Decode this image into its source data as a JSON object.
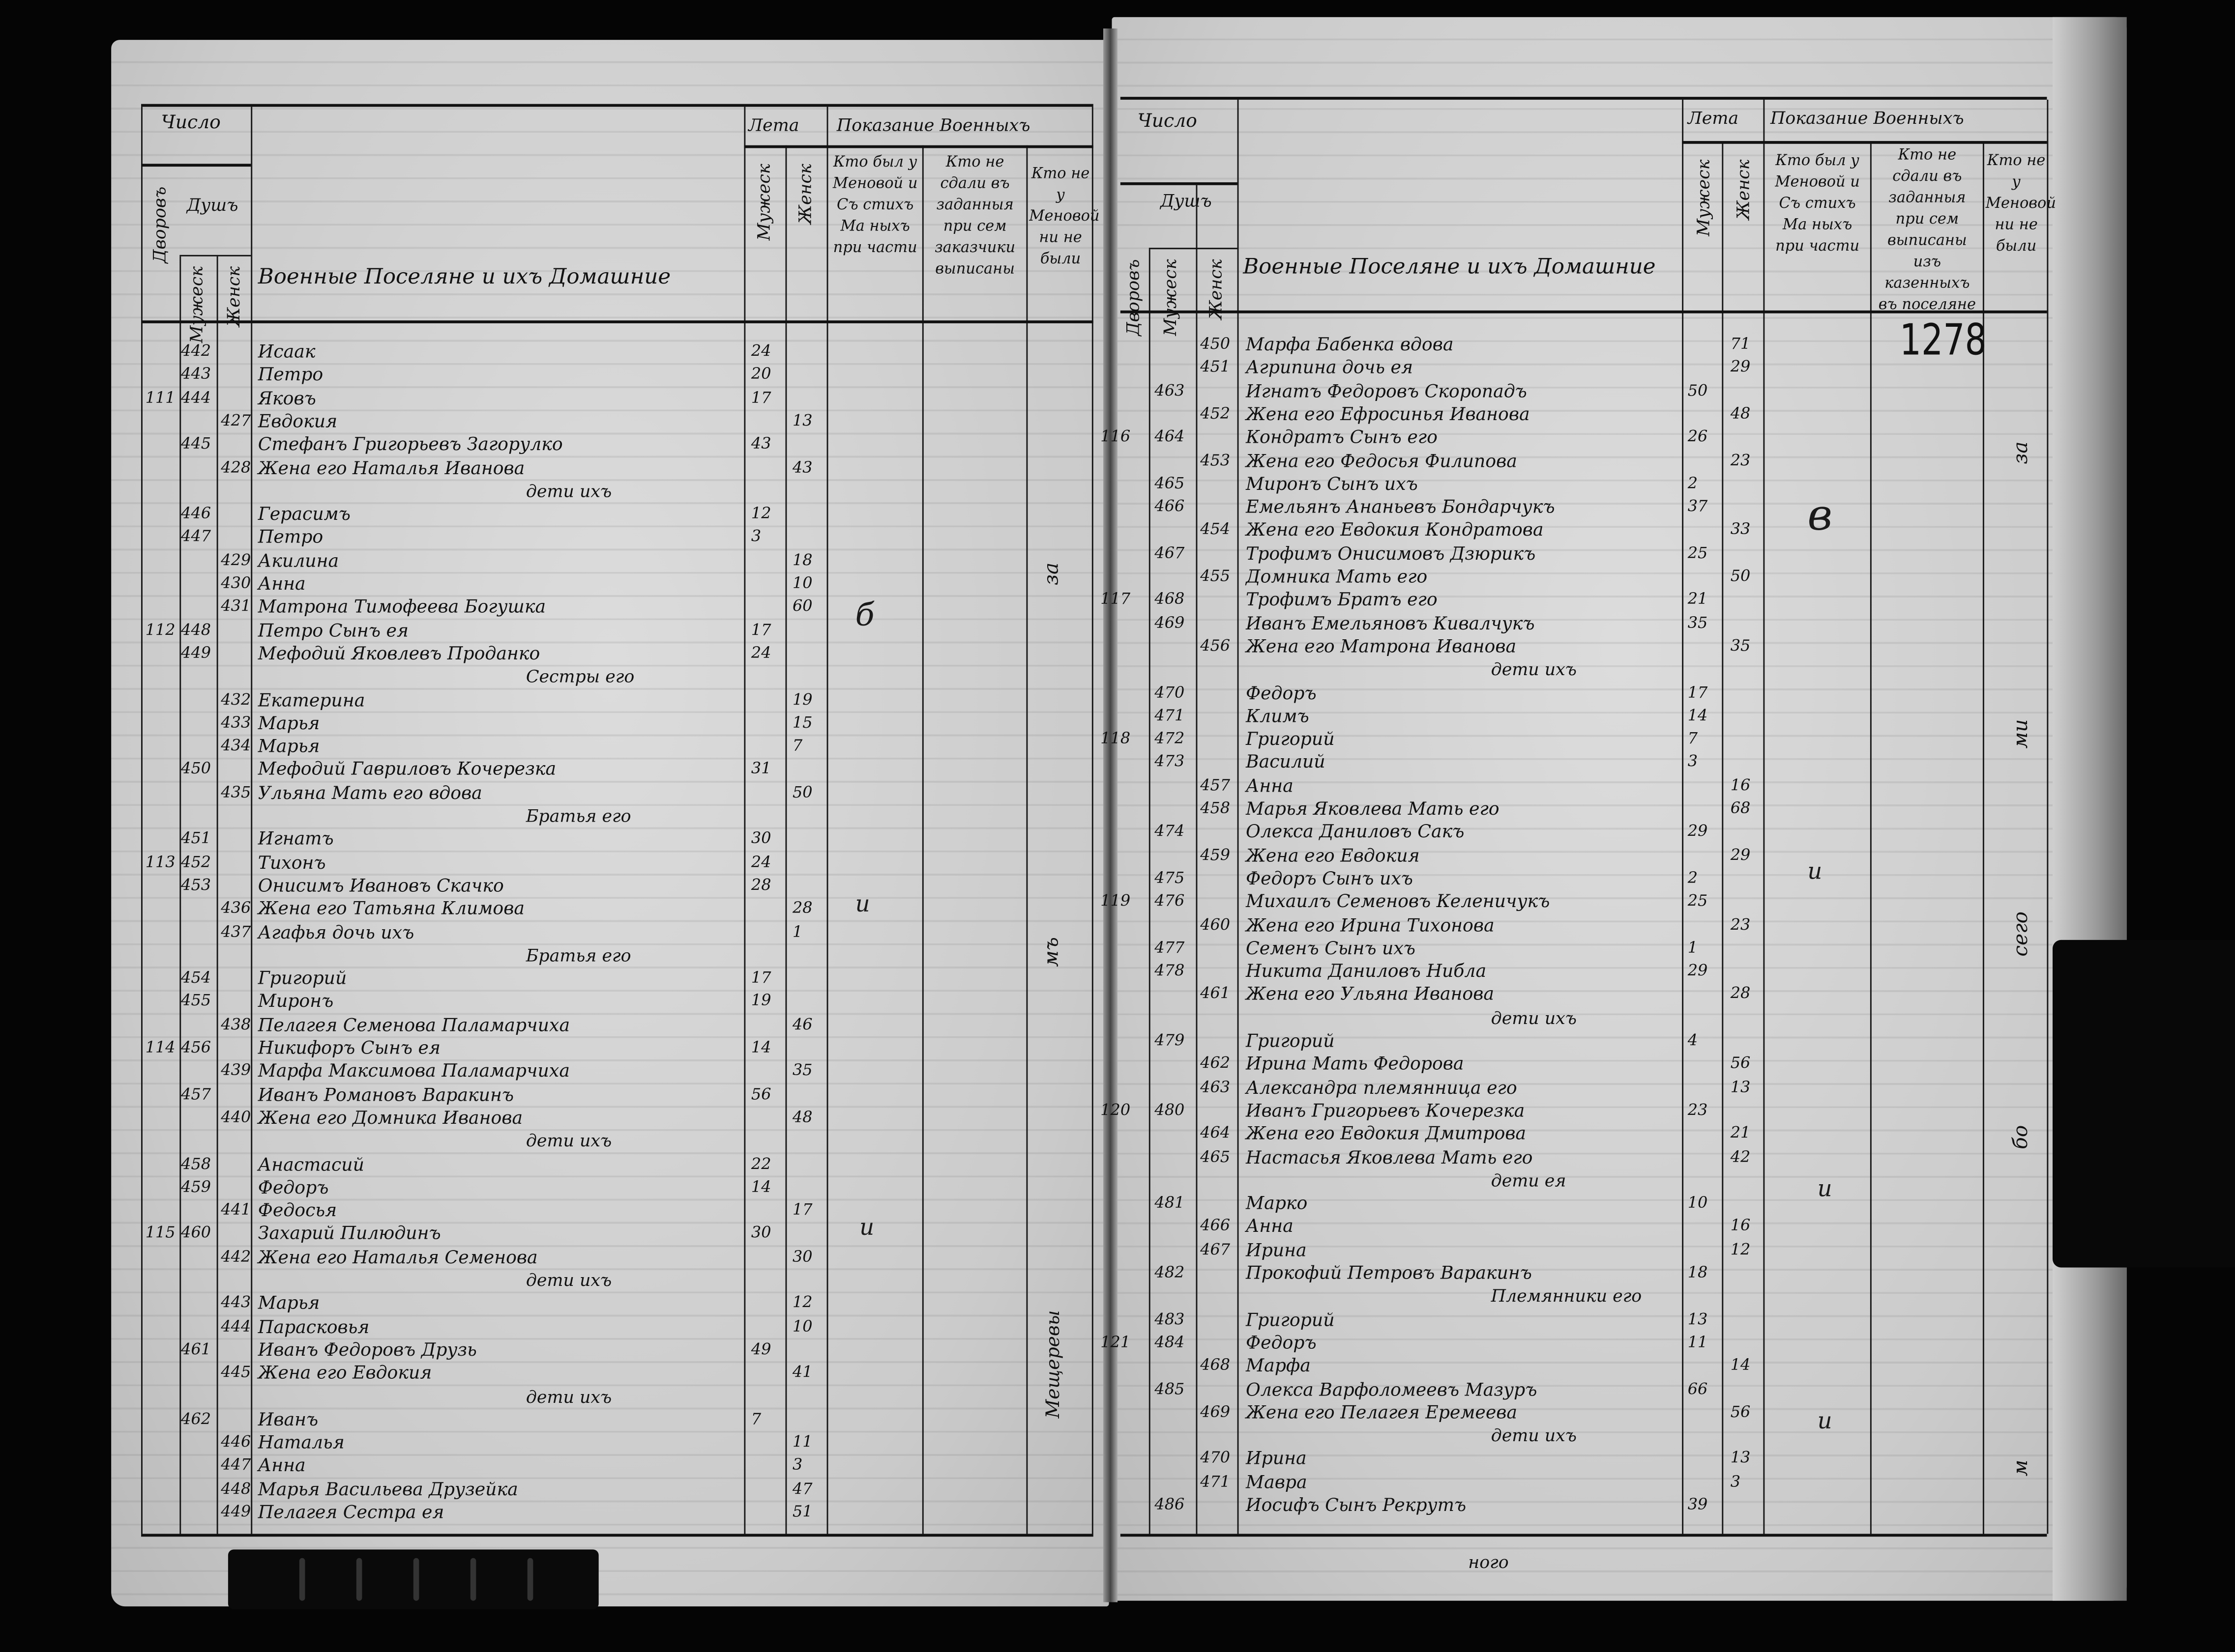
{
  "left_page": {
    "header": {
      "count": "Число",
      "souls": "Душъ",
      "yards": "Дворовъ",
      "male": "Мужеск",
      "female": "Женск",
      "names": "Военные Поселяне и ихъ Домашние",
      "years": "Лета",
      "shown": "Показание Военныхъ",
      "age_male": "Мужеск",
      "age_female": "Женск",
      "col_a": "Кто был у Меновой и Съ стихъ Ма ныхъ при части",
      "col_b": "Кто не сдали въ заданныя при сем заказчики выписаны",
      "col_c": "Кто не у Меновой ни не были"
    },
    "rows": [
      {
        "yard": "",
        "m": "442",
        "f": "",
        "name": "Исаак",
        "am": "24",
        "af": ""
      },
      {
        "yard": "",
        "m": "443",
        "f": "",
        "name": "Петро",
        "am": "20",
        "af": ""
      },
      {
        "yard": "111",
        "m": "444",
        "f": "",
        "name": "Яковъ",
        "am": "17",
        "af": ""
      },
      {
        "yard": "",
        "m": "",
        "f": "427",
        "name": "Евдокия",
        "am": "",
        "af": "13"
      },
      {
        "yard": "",
        "m": "445",
        "f": "",
        "name": "Стефанъ Григорьевъ Загорулко",
        "am": "43",
        "af": ""
      },
      {
        "yard": "",
        "m": "",
        "f": "428",
        "name": "Жена его Наталья Иванова",
        "am": "",
        "af": "43"
      },
      {
        "sub": true,
        "name": "дети ихъ"
      },
      {
        "yard": "",
        "m": "446",
        "f": "",
        "name": "Герасимъ",
        "am": "12",
        "af": ""
      },
      {
        "yard": "",
        "m": "447",
        "f": "",
        "name": "Петро",
        "am": "3",
        "af": ""
      },
      {
        "yard": "",
        "m": "",
        "f": "429",
        "name": "Акилина",
        "am": "",
        "af": "18"
      },
      {
        "yard": "",
        "m": "",
        "f": "430",
        "name": "Анна",
        "am": "",
        "af": "10"
      },
      {
        "yard": "",
        "m": "",
        "f": "431",
        "name": "Матрона Тимофеева Богушка",
        "am": "",
        "af": "60"
      },
      {
        "yard": "112",
        "m": "448",
        "f": "",
        "name": "Петро Сынъ ея",
        "am": "17",
        "af": ""
      },
      {
        "yard": "",
        "m": "449",
        "f": "",
        "name": "Мефодий Яковлевъ Проданко",
        "am": "24",
        "af": ""
      },
      {
        "sub": true,
        "name": "Сестры его"
      },
      {
        "yard": "",
        "m": "",
        "f": "432",
        "name": "Екатерина",
        "am": "",
        "af": "19"
      },
      {
        "yard": "",
        "m": "",
        "f": "433",
        "name": "Марья",
        "am": "",
        "af": "15"
      },
      {
        "yard": "",
        "m": "",
        "f": "434",
        "name": "Марья",
        "am": "",
        "af": "7"
      },
      {
        "yard": "",
        "m": "450",
        "f": "",
        "name": "Мефодий Гавриловъ Кочерезка",
        "am": "31",
        "af": ""
      },
      {
        "yard": "",
        "m": "",
        "f": "435",
        "name": "Ульяна Мать его вдова",
        "am": "",
        "af": "50"
      },
      {
        "sub": true,
        "name": "Братья его"
      },
      {
        "yard": "",
        "m": "451",
        "f": "",
        "name": "Игнатъ",
        "am": "30",
        "af": ""
      },
      {
        "yard": "113",
        "m": "452",
        "f": "",
        "name": "Тихонъ",
        "am": "24",
        "af": ""
      },
      {
        "yard": "",
        "m": "453",
        "f": "",
        "name": "Онисимъ Ивановъ Скачко",
        "am": "28",
        "af": ""
      },
      {
        "yard": "",
        "m": "",
        "f": "436",
        "name": "Жена его Татьяна Климова",
        "am": "",
        "af": "28"
      },
      {
        "yard": "",
        "m": "",
        "f": "437",
        "name": "Агафья дочь ихъ",
        "am": "",
        "af": "1"
      },
      {
        "sub": true,
        "name": "Братья его"
      },
      {
        "yard": "",
        "m": "454",
        "f": "",
        "name": "Григорий",
        "am": "17",
        "af": ""
      },
      {
        "yard": "",
        "m": "455",
        "f": "",
        "name": "Миронъ",
        "am": "19",
        "af": ""
      },
      {
        "yard": "",
        "m": "",
        "f": "438",
        "name": "Пелагея Семенова Паламарчиха",
        "am": "",
        "af": "46"
      },
      {
        "yard": "114",
        "m": "456",
        "f": "",
        "name": "Никифоръ Сынъ ея",
        "am": "14",
        "af": ""
      },
      {
        "yard": "",
        "m": "",
        "f": "439",
        "name": "Марфа Максимова Паламарчиха",
        "am": "",
        "af": "35"
      },
      {
        "yard": "",
        "m": "457",
        "f": "",
        "name": "Иванъ Романовъ Варакинъ",
        "am": "56",
        "af": ""
      },
      {
        "yard": "",
        "m": "",
        "f": "440",
        "name": "Жена его Домника Иванова",
        "am": "",
        "af": "48"
      },
      {
        "sub": true,
        "name": "дети ихъ"
      },
      {
        "yard": "",
        "m": "458",
        "f": "",
        "name": "Анастасий",
        "am": "22",
        "af": ""
      },
      {
        "yard": "",
        "m": "459",
        "f": "",
        "name": "Федоръ",
        "am": "14",
        "af": ""
      },
      {
        "yard": "",
        "m": "",
        "f": "441",
        "name": "Федосья",
        "am": "",
        "af": "17"
      },
      {
        "yard": "115",
        "m": "460",
        "f": "",
        "name": "Захарий Пилюдинъ",
        "am": "30",
        "af": ""
      },
      {
        "yard": "",
        "m": "",
        "f": "442",
        "name": "Жена его Наталья Семенова",
        "am": "",
        "af": "30"
      },
      {
        "sub": true,
        "name": "дети ихъ"
      },
      {
        "yard": "",
        "m": "",
        "f": "443",
        "name": "Марья",
        "am": "",
        "af": "12"
      },
      {
        "yard": "",
        "m": "",
        "f": "444",
        "name": "Парасковья",
        "am": "",
        "af": "10"
      },
      {
        "yard": "",
        "m": "461",
        "f": "",
        "name": "Иванъ Федоровъ Друзь",
        "am": "49",
        "af": ""
      },
      {
        "yard": "",
        "m": "",
        "f": "445",
        "name": "Жена его Евдокия",
        "am": "",
        "af": "41"
      },
      {
        "sub": true,
        "name": "дети ихъ"
      },
      {
        "yard": "",
        "m": "462",
        "f": "",
        "name": "Иванъ",
        "am": "7",
        "af": ""
      },
      {
        "yard": "",
        "m": "",
        "f": "446",
        "name": "Наталья",
        "am": "",
        "af": "11"
      },
      {
        "yard": "",
        "m": "",
        "f": "447",
        "name": "Анна",
        "am": "",
        "af": "3"
      },
      {
        "yard": "",
        "m": "",
        "f": "448",
        "name": "Марья Васильева Друзейка",
        "am": "",
        "af": "47"
      },
      {
        "yard": "",
        "m": "",
        "f": "449",
        "name": "Пелагея Сестра ея",
        "am": "",
        "af": "51"
      }
    ],
    "notes": [
      "б",
      "и",
      "и",
      "за",
      "мъ",
      "Мещеревы"
    ]
  },
  "right_page": {
    "header": {
      "count": "Число",
      "souls": "Душъ",
      "yards": "Дворовъ",
      "male": "Мужеск",
      "female": "Женск",
      "names": "Военные Поселяне и ихъ Домашние",
      "years": "Лета",
      "shown": "Показание Военныхъ",
      "age_male": "Мужеск",
      "age_female": "Женск",
      "col_a": "Кто был у Меновой и Съ стихъ Ма ныхъ при части",
      "col_b": "Кто не сдали въ заданныя при сем выписаны изъ казенныхъ въ поселяне",
      "col_c": "Кто не у Меновой ни не были"
    },
    "stamp": "1278",
    "rows": [
      {
        "yard": "",
        "m": "",
        "f": "450",
        "name": "Марфа Бабенка вдова",
        "am": "",
        "af": "71"
      },
      {
        "yard": "",
        "m": "",
        "f": "451",
        "name": "Агрипина дочь ея",
        "am": "",
        "af": "29"
      },
      {
        "yard": "",
        "m": "463",
        "f": "",
        "name": "Игнатъ Федоровъ Скоропадъ",
        "am": "50",
        "af": ""
      },
      {
        "yard": "",
        "m": "",
        "f": "452",
        "name": "Жена его Ефросинья Иванова",
        "am": "",
        "af": "48"
      },
      {
        "yard": "116",
        "m": "464",
        "f": "",
        "name": "Кондратъ Сынъ его",
        "am": "26",
        "af": ""
      },
      {
        "yard": "",
        "m": "",
        "f": "453",
        "name": "Жена его Федосья Филипова",
        "am": "",
        "af": "23"
      },
      {
        "yard": "",
        "m": "465",
        "f": "",
        "name": "Миронъ Сынъ ихъ",
        "am": "2",
        "af": ""
      },
      {
        "yard": "",
        "m": "466",
        "f": "",
        "name": "Емельянъ Ананьевъ Бондарчукъ",
        "am": "37",
        "af": ""
      },
      {
        "yard": "",
        "m": "",
        "f": "454",
        "name": "Жена его Евдокия Кондратова",
        "am": "",
        "af": "33"
      },
      {
        "yard": "",
        "m": "467",
        "f": "",
        "name": "Трофимъ Онисимовъ Дзюрикъ",
        "am": "25",
        "af": ""
      },
      {
        "yard": "",
        "m": "",
        "f": "455",
        "name": "Домника Мать его",
        "am": "",
        "af": "50"
      },
      {
        "yard": "117",
        "m": "468",
        "f": "",
        "name": "Трофимъ Братъ его",
        "am": "21",
        "af": ""
      },
      {
        "yard": "",
        "m": "469",
        "f": "",
        "name": "Иванъ Емельяновъ Кивалчукъ",
        "am": "35",
        "af": ""
      },
      {
        "yard": "",
        "m": "",
        "f": "456",
        "name": "Жена его Матрона Иванова",
        "am": "",
        "af": "35"
      },
      {
        "sub": true,
        "name": "дети ихъ"
      },
      {
        "yard": "",
        "m": "470",
        "f": "",
        "name": "Федоръ",
        "am": "17",
        "af": ""
      },
      {
        "yard": "",
        "m": "471",
        "f": "",
        "name": "Климъ",
        "am": "14",
        "af": ""
      },
      {
        "yard": "118",
        "m": "472",
        "f": "",
        "name": "Григорий",
        "am": "7",
        "af": ""
      },
      {
        "yard": "",
        "m": "473",
        "f": "",
        "name": "Василий",
        "am": "3",
        "af": ""
      },
      {
        "yard": "",
        "m": "",
        "f": "457",
        "name": "Анна",
        "am": "",
        "af": "16"
      },
      {
        "yard": "",
        "m": "",
        "f": "458",
        "name": "Марья Яковлева Мать его",
        "am": "",
        "af": "68"
      },
      {
        "yard": "",
        "m": "474",
        "f": "",
        "name": "Олекса Даниловъ Сакъ",
        "am": "29",
        "af": ""
      },
      {
        "yard": "",
        "m": "",
        "f": "459",
        "name": "Жена его Евдокия",
        "am": "",
        "af": "29"
      },
      {
        "yard": "",
        "m": "475",
        "f": "",
        "name": "Федоръ Сынъ ихъ",
        "am": "2",
        "af": ""
      },
      {
        "yard": "119",
        "m": "476",
        "f": "",
        "name": "Михаилъ Семеновъ Келеничукъ",
        "am": "25",
        "af": ""
      },
      {
        "yard": "",
        "m": "",
        "f": "460",
        "name": "Жена его Ирина Тихонова",
        "am": "",
        "af": "23"
      },
      {
        "yard": "",
        "m": "477",
        "f": "",
        "name": "Семенъ Сынъ ихъ",
        "am": "1",
        "af": ""
      },
      {
        "yard": "",
        "m": "478",
        "f": "",
        "name": "Никита Даниловъ Нибла",
        "am": "29",
        "af": ""
      },
      {
        "yard": "",
        "m": "",
        "f": "461",
        "name": "Жена его Ульяна Иванова",
        "am": "",
        "af": "28"
      },
      {
        "sub": true,
        "name": "дети ихъ"
      },
      {
        "yard": "",
        "m": "479",
        "f": "",
        "name": "Григорий",
        "am": "4",
        "af": ""
      },
      {
        "yard": "",
        "m": "",
        "f": "462",
        "name": "Ирина Мать Федорова",
        "am": "",
        "af": "56"
      },
      {
        "yard": "",
        "m": "",
        "f": "463",
        "name": "Александра племянница его",
        "am": "",
        "af": "13"
      },
      {
        "yard": "120",
        "m": "480",
        "f": "",
        "name": "Иванъ Григорьевъ Кочерезка",
        "am": "23",
        "af": ""
      },
      {
        "yard": "",
        "m": "",
        "f": "464",
        "name": "Жена его Евдокия Дмитрова",
        "am": "",
        "af": "21"
      },
      {
        "yard": "",
        "m": "",
        "f": "465",
        "name": "Настасья Яковлева Мать его",
        "am": "",
        "af": "42"
      },
      {
        "sub": true,
        "name": "дети ея"
      },
      {
        "yard": "",
        "m": "481",
        "f": "",
        "name": "Марко",
        "am": "10",
        "af": ""
      },
      {
        "yard": "",
        "m": "",
        "f": "466",
        "name": "Анна",
        "am": "",
        "af": "16"
      },
      {
        "yard": "",
        "m": "",
        "f": "467",
        "name": "Ирина",
        "am": "",
        "af": "12"
      },
      {
        "yard": "",
        "m": "482",
        "f": "",
        "name": "Прокофий Петровъ Варакинъ",
        "am": "18",
        "af": ""
      },
      {
        "sub": true,
        "name": "Племянники его"
      },
      {
        "yard": "",
        "m": "483",
        "f": "",
        "name": "Григорий",
        "am": "13",
        "af": ""
      },
      {
        "yard": "121",
        "m": "484",
        "f": "",
        "name": "Федоръ",
        "am": "11",
        "af": ""
      },
      {
        "yard": "",
        "m": "",
        "f": "468",
        "name": "Марфа",
        "am": "",
        "af": "14"
      },
      {
        "yard": "",
        "m": "485",
        "f": "",
        "name": "Олекса Варфоломеевъ Мазуръ",
        "am": "66",
        "af": ""
      },
      {
        "yard": "",
        "m": "",
        "f": "469",
        "name": "Жена его Пелагея Еремеева",
        "am": "",
        "af": "56"
      },
      {
        "sub": true,
        "name": "дети ихъ"
      },
      {
        "yard": "",
        "m": "",
        "f": "470",
        "name": "Ирина",
        "am": "",
        "af": "13"
      },
      {
        "yard": "",
        "m": "",
        "f": "471",
        "name": "Мавра",
        "am": "",
        "af": "3"
      },
      {
        "yard": "",
        "m": "486",
        "f": "",
        "name": "Иосифъ Сынъ Рекрутъ",
        "am": "39",
        "af": ""
      }
    ],
    "notes": [
      "в",
      "и",
      "и",
      "и",
      "за",
      "ми",
      "сего",
      "бо",
      "м"
    ],
    "footer": "ного"
  }
}
